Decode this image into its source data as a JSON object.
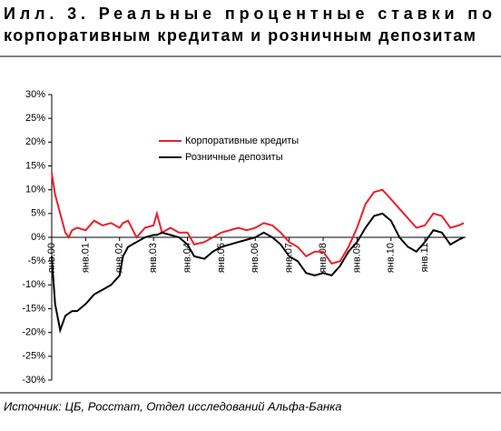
{
  "chart_data": {
    "type": "line",
    "title": [
      "Илл.        3. Реальные процентные ставки по",
      "корпоративным кредитам и розничным депозитам"
    ],
    "source": "Источник: ЦБ, Росстат, Отдел исследований Альфа-Банка",
    "x": [
      2000,
      2000.1,
      2000.25,
      2000.4,
      2000.5,
      2000.6,
      2000.75,
      2001,
      2001.25,
      2001.5,
      2001.75,
      2002,
      2002.1,
      2002.25,
      2002.5,
      2002.75,
      2003,
      2003.1,
      2003.25,
      2003.5,
      2003.75,
      2004,
      2004.2,
      2004.5,
      2004.75,
      2005,
      2005.25,
      2005.5,
      2005.75,
      2006,
      2006.25,
      2006.5,
      2006.75,
      2007,
      2007.25,
      2007.5,
      2007.75,
      2008,
      2008.25,
      2008.5,
      2008.75,
      2009,
      2009.25,
      2009.5,
      2009.75,
      2010,
      2010.25,
      2010.5,
      2010.75,
      2011,
      2011.25,
      2011.5,
      2011.75,
      2012,
      2012.15
    ],
    "series": [
      {
        "name": "Корпоративные кредиты",
        "color": "#e8202a",
        "values": [
          13.5,
          9,
          5,
          1,
          0,
          1.5,
          2,
          1.5,
          3.5,
          2.5,
          3,
          2,
          3,
          3.5,
          0,
          2,
          2.5,
          5,
          1,
          2,
          1,
          1,
          -1.5,
          -1,
          0,
          1,
          1.5,
          2,
          1.5,
          2,
          3,
          2.5,
          1,
          -1,
          -2,
          -4,
          -3,
          -3,
          -5.5,
          -5,
          -2,
          2,
          7,
          9.5,
          10,
          8,
          6,
          4,
          2,
          2.5,
          5,
          4.5,
          2,
          2.5,
          3
        ]
      },
      {
        "name": "Розничные депозиты",
        "color": "#000000",
        "values": [
          -4,
          -14,
          -19.5,
          -16.5,
          -16,
          -15.5,
          -15.5,
          -14,
          -12,
          -11,
          -10,
          -8,
          -4,
          -2,
          -1,
          0,
          0.5,
          0.5,
          1,
          0.5,
          0,
          -1.5,
          -4,
          -4.5,
          -3,
          -2,
          -1.5,
          -1,
          -0.5,
          0,
          1,
          0,
          -1.5,
          -4,
          -5,
          -7.5,
          -8,
          -7.5,
          -8,
          -6,
          -3,
          -1,
          2,
          4.5,
          5,
          3.5,
          0,
          -2,
          -3,
          -1,
          1.5,
          1,
          -1.5,
          -0.5,
          0
        ]
      }
    ],
    "xlim": [
      2000,
      2012.2
    ],
    "xticks": [
      {
        "value": 2000,
        "label": "янв.00"
      },
      {
        "value": 2001,
        "label": "янв.01"
      },
      {
        "value": 2002,
        "label": "янв.02"
      },
      {
        "value": 2003,
        "label": "янв.03"
      },
      {
        "value": 2004,
        "label": "янв.04"
      },
      {
        "value": 2005,
        "label": "янв.05"
      },
      {
        "value": 2006,
        "label": "янв.06"
      },
      {
        "value": 2007,
        "label": "янв.07"
      },
      {
        "value": 2008,
        "label": "янв.08"
      },
      {
        "value": 2009,
        "label": "янв.09"
      },
      {
        "value": 2010,
        "label": "янв.10"
      },
      {
        "value": 2011,
        "label": "янв.11"
      }
    ],
    "ylim": [
      -30,
      30
    ],
    "yticks": [
      {
        "value": -30,
        "label": "-30%"
      },
      {
        "value": -25,
        "label": "-25%"
      },
      {
        "value": -20,
        "label": "-20%"
      },
      {
        "value": -15,
        "label": "-15%"
      },
      {
        "value": -10,
        "label": "-10%"
      },
      {
        "value": -5,
        "label": "-5%"
      },
      {
        "value": 0,
        "label": "0%"
      },
      {
        "value": 5,
        "label": "5%"
      },
      {
        "value": 10,
        "label": "10%"
      },
      {
        "value": 15,
        "label": "15%"
      },
      {
        "value": 20,
        "label": "20%"
      },
      {
        "value": 25,
        "label": "25%"
      },
      {
        "value": 30,
        "label": "30%"
      }
    ],
    "grid": false
  }
}
